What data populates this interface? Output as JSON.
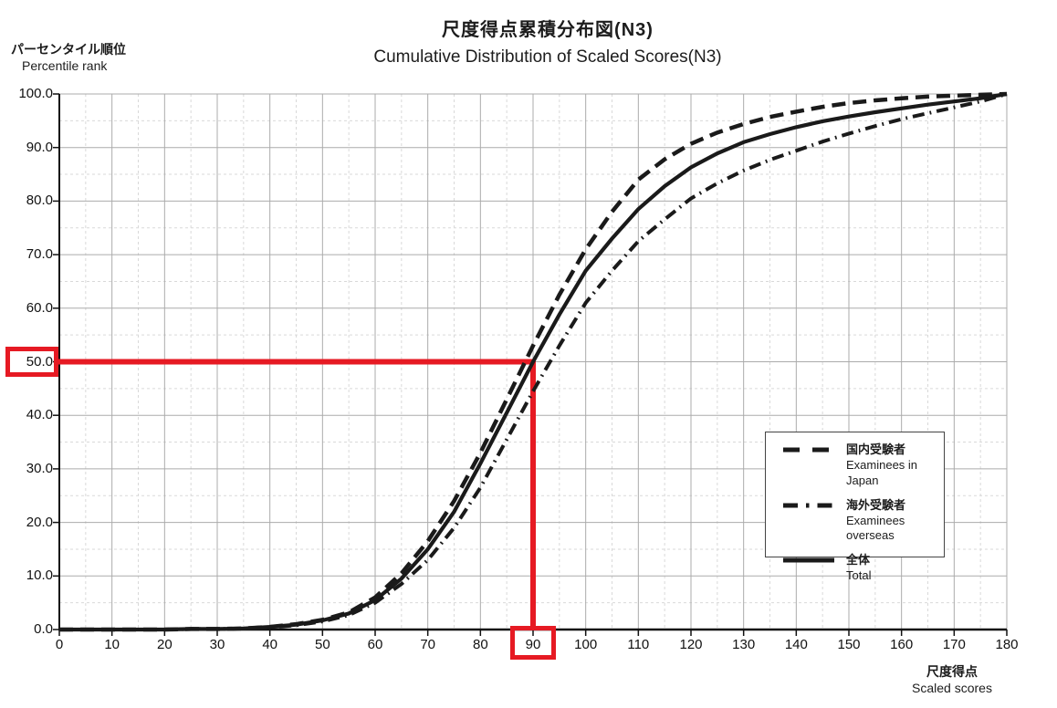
{
  "chart_data": {
    "type": "line",
    "title_ja": "尺度得点累積分布図(N3)",
    "title_en": "Cumulative Distribution of Scaled Scores(N3)",
    "xlabel_ja": "尺度得点",
    "xlabel_en": "Scaled scores",
    "ylabel_ja": "パーセンタイル順位",
    "ylabel_en": "Percentile rank",
    "xlim": [
      0,
      180
    ],
    "ylim": [
      0,
      100
    ],
    "grid": {
      "major_every": 10,
      "minor_every": 5,
      "minor_dashed": true
    },
    "legend_position": "right-middle",
    "x_ticks": [
      {
        "v": 0,
        "label": "0"
      },
      {
        "v": 10,
        "label": "10"
      },
      {
        "v": 20,
        "label": "20"
      },
      {
        "v": 30,
        "label": "30"
      },
      {
        "v": 40,
        "label": "40"
      },
      {
        "v": 50,
        "label": "50"
      },
      {
        "v": 60,
        "label": "60"
      },
      {
        "v": 70,
        "label": "70"
      },
      {
        "v": 80,
        "label": "80"
      },
      {
        "v": 90,
        "label": "90"
      },
      {
        "v": 100,
        "label": "100"
      },
      {
        "v": 110,
        "label": "110"
      },
      {
        "v": 120,
        "label": "120"
      },
      {
        "v": 130,
        "label": "130"
      },
      {
        "v": 140,
        "label": "140"
      },
      {
        "v": 150,
        "label": "150"
      },
      {
        "v": 160,
        "label": "160"
      },
      {
        "v": 170,
        "label": "170"
      },
      {
        "v": 180,
        "label": "180"
      }
    ],
    "y_ticks": [
      {
        "v": 0,
        "label": "0.0"
      },
      {
        "v": 10,
        "label": "10.0"
      },
      {
        "v": 20,
        "label": "20.0"
      },
      {
        "v": 30,
        "label": "30.0"
      },
      {
        "v": 40,
        "label": "40.0"
      },
      {
        "v": 50,
        "label": "50.0"
      },
      {
        "v": 60,
        "label": "60.0"
      },
      {
        "v": 70,
        "label": "70.0"
      },
      {
        "v": 80,
        "label": "80.0"
      },
      {
        "v": 90,
        "label": "90.0"
      },
      {
        "v": 100,
        "label": "100.0"
      }
    ],
    "x": [
      0,
      5,
      10,
      15,
      20,
      25,
      30,
      35,
      40,
      45,
      50,
      55,
      60,
      65,
      70,
      75,
      80,
      85,
      90,
      95,
      100,
      105,
      110,
      115,
      120,
      125,
      130,
      135,
      140,
      145,
      150,
      155,
      160,
      165,
      170,
      175,
      180
    ],
    "series": [
      {
        "id": "japan",
        "name_ja": "国内受験者",
        "name_en": "Examinees in Japan",
        "style": "dashed",
        "color": "#1a1a1a",
        "values": [
          0,
          0,
          0,
          0,
          0,
          0.1,
          0.1,
          0.2,
          0.5,
          1.0,
          1.8,
          3.2,
          6.0,
          10.5,
          16.5,
          24,
          33,
          43,
          53,
          62.5,
          71,
          78,
          84,
          87.8,
          90.7,
          92.8,
          94.4,
          95.7,
          96.7,
          97.6,
          98.3,
          98.8,
          99.2,
          99.5,
          99.7,
          99.85,
          100
        ]
      },
      {
        "id": "overseas",
        "name_ja": "海外受験者",
        "name_en": "Examinees overseas",
        "style": "dash-dot",
        "color": "#1a1a1a",
        "values": [
          0,
          0,
          0,
          0,
          0,
          0.1,
          0.1,
          0.2,
          0.4,
          0.8,
          1.5,
          2.7,
          5.0,
          8.5,
          13,
          19,
          26.5,
          35.5,
          44.5,
          53,
          61,
          67,
          72.5,
          76.6,
          80.5,
          83.3,
          85.7,
          87.7,
          89.4,
          91.1,
          92.6,
          94,
          95.3,
          96.4,
          97.5,
          98.6,
          100
        ]
      },
      {
        "id": "total",
        "name_ja": "全体",
        "name_en": "Total",
        "style": "solid",
        "color": "#1a1a1a",
        "values": [
          0,
          0,
          0,
          0,
          0,
          0.1,
          0.1,
          0.2,
          0.5,
          0.9,
          1.7,
          3.0,
          5.5,
          9.5,
          15,
          22,
          31,
          40.5,
          50,
          58.8,
          67,
          73,
          78.5,
          82.8,
          86.3,
          88.9,
          91,
          92.5,
          93.8,
          94.9,
          95.8,
          96.6,
          97.3,
          98,
          98.6,
          99.2,
          100
        ]
      }
    ]
  },
  "annotation": {
    "score": 90,
    "score_label": "90",
    "percentile": 50,
    "percentile_label": "50.0",
    "color": "#e61a23",
    "meaning": "Scaled score 90 corresponds to percentile rank 50.0 on the Total curve"
  }
}
